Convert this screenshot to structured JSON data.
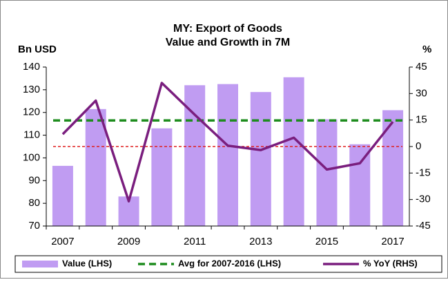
{
  "chart_data": {
    "type": "bar-line",
    "title": [
      "MY: Export of Goods",
      "Value and Growth in 7M"
    ],
    "y_label": "Bn USD",
    "y2_label": "%",
    "categories": [
      "2007",
      null,
      "2009",
      null,
      "2011",
      null,
      "2013",
      null,
      "2015",
      null,
      "2017"
    ],
    "series": [
      {
        "name": "Value (LHS)",
        "color": "#c09cf2",
        "kind": "bar",
        "values": [
          96.5,
          121.5,
          83,
          113,
          132,
          132.5,
          129,
          135.5,
          117,
          106,
          121
        ]
      },
      {
        "name": "Avg for 2007-2016 (LHS)",
        "color": "#1e8c1e",
        "kind": "hline",
        "value": 116.5
      },
      {
        "name": "% YoY (RHS)",
        "color": "#7a1e7e",
        "kind": "line",
        "axis": "y2",
        "values": [
          7,
          26,
          -31,
          36,
          18,
          0.5,
          -2,
          5,
          -13,
          -9.5,
          14
        ]
      }
    ],
    "zero_line_y2": {
      "value": 0,
      "color": "#e02020"
    },
    "ylim": [
      70,
      140
    ],
    "yticks": [
      70,
      80,
      90,
      100,
      110,
      120,
      130,
      140
    ],
    "y2lim": [
      -45,
      45
    ],
    "y2ticks": [
      -45,
      -30,
      -15,
      0,
      15,
      30,
      45
    ]
  }
}
